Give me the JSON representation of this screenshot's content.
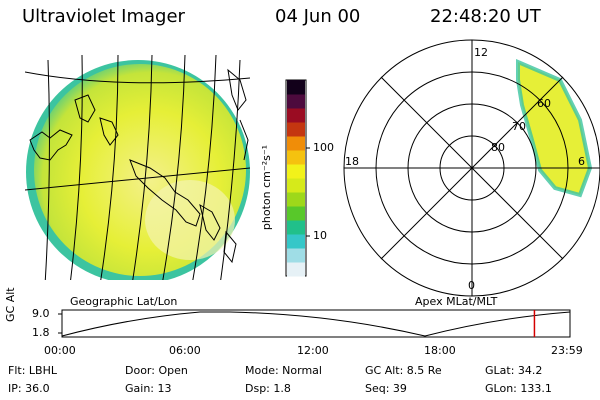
{
  "header": {
    "title": "Ultraviolet Imager",
    "date": "04 Jun 00",
    "time": "22:48:20 UT"
  },
  "colorbar": {
    "unit": "photon cm⁻²s⁻¹",
    "tick_100": "100",
    "tick_10": "10",
    "colors": [
      "#e6f1f6",
      "#9fdde6",
      "#35c7c8",
      "#21c08a",
      "#58c82a",
      "#9ed81a",
      "#d6ea1a",
      "#f2f21a",
      "#f5c20f",
      "#f08d08",
      "#c43610",
      "#9a0c22",
      "#4d0a3d",
      "#12001a"
    ]
  },
  "left_map": {
    "label": "Geographic Lat/Lon",
    "aurora_fill": "#e6ef37"
  },
  "polar_plot": {
    "label": "Apex MLat/MLT",
    "mlt_labels": [
      "12",
      "18",
      "6",
      "0"
    ],
    "lat_labels": [
      "60",
      "70",
      "80"
    ]
  },
  "timeline": {
    "axis_label": "GC Alt",
    "y_top": "9.0",
    "y_bottom": "1.8",
    "x_labels": [
      "00:00",
      "06:00",
      "12:00",
      "18:00",
      "23:59"
    ],
    "marker_fraction": 0.93,
    "marker_color": "#d40000"
  },
  "info": {
    "row1": {
      "flt": "Flt: LBHL",
      "door": "Door: Open",
      "mode": "Mode: Normal",
      "gcalt": "GC Alt: 8.5 Re",
      "glat": "GLat:  34.2"
    },
    "row2": {
      "ip": "IP: 36.0",
      "gain": "Gain: 13",
      "dsp": "Dsp:    1.8",
      "seq": "Seq: 39",
      "glon": "GLon: 133.1"
    }
  }
}
